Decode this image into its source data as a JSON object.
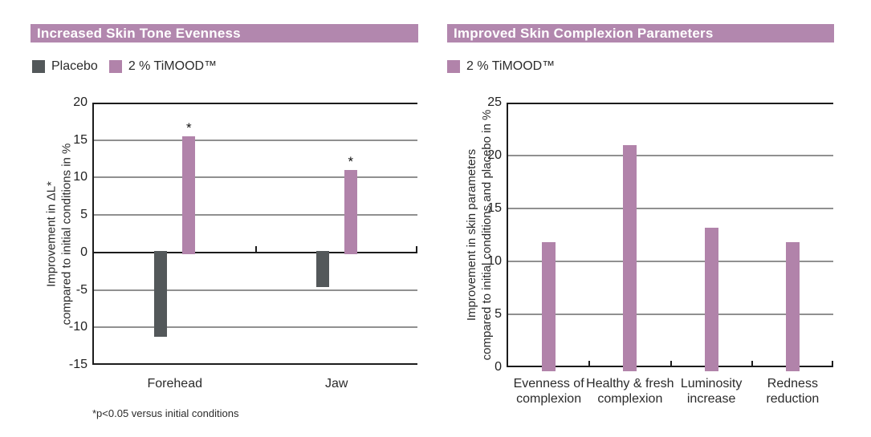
{
  "colors": {
    "header_bg": "#b287ae",
    "header_text": "#ffffff",
    "timood_bar": "#b183aa",
    "placebo_bar": "#53585a",
    "gridline": "#909090",
    "axis": "#1c1c1c",
    "text": "#2b2b2b"
  },
  "chart_data": [
    {
      "type": "bar",
      "title": "Increased Skin Tone Evenness",
      "categories": [
        "Forehead",
        "Jaw"
      ],
      "series": [
        {
          "name": "Placebo",
          "color": "#53585a",
          "values": [
            -11.3,
            -4.6
          ]
        },
        {
          "name": "2 % TiMOOD™",
          "color": "#b183aa",
          "values": [
            15.5,
            11
          ],
          "annotations": [
            "*",
            "*"
          ]
        }
      ],
      "ylabel": "Improvement in ΔL*\ncompared to initial conditions in %",
      "xlabel": "",
      "ylim": [
        -15,
        20
      ],
      "yticks": [
        20,
        15,
        10,
        5,
        0,
        -5,
        -10,
        -15
      ],
      "grid": true,
      "legend_position": "top-left",
      "footnote": "*p<0.05 versus initial conditions"
    },
    {
      "type": "bar",
      "title": "Improved Skin Complexion Parameters",
      "categories": [
        "Evenness of\ncomplexion",
        "Healthy & fresh\ncomplexion",
        "Luminosity\nincrease",
        "Redness\nreduction"
      ],
      "series": [
        {
          "name": "2 % TiMOOD™",
          "color": "#b183aa",
          "values": [
            11.8,
            21,
            13.2,
            11.8
          ]
        }
      ],
      "ylabel": "Improvement in skin parameters\ncompared to initial conditions and placebo in %",
      "xlabel": "",
      "ylim": [
        0,
        25
      ],
      "yticks": [
        25,
        20,
        15,
        10,
        5,
        0
      ],
      "grid": true,
      "legend_position": "top-left"
    }
  ]
}
